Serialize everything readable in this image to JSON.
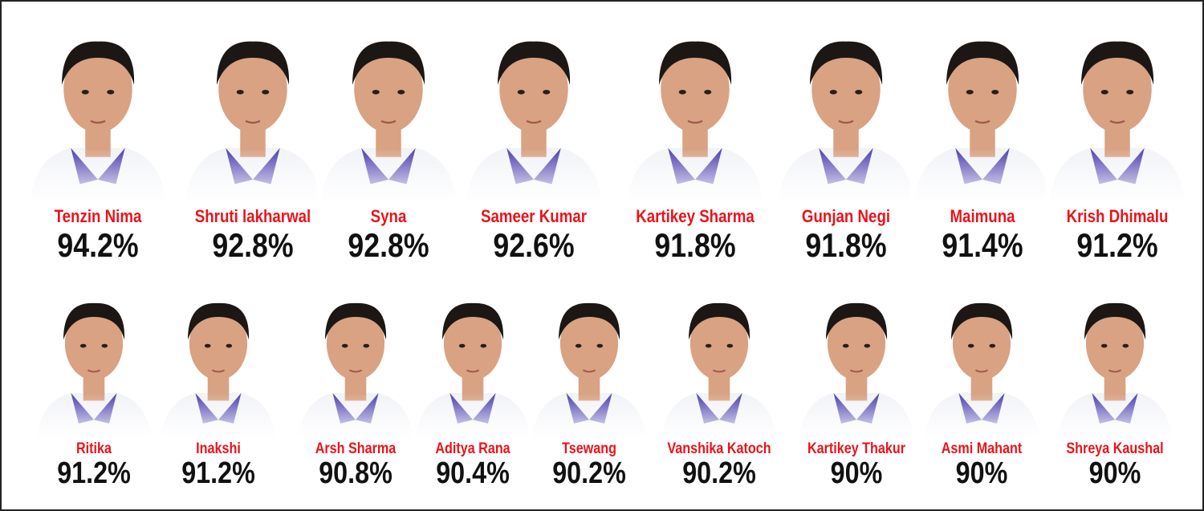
{
  "colors": {
    "name": "#e8141b",
    "score": "#111111",
    "collar": "#4b3fb0",
    "shirt": "#f2f3f7",
    "hair": "#1c1714",
    "skin": "#d8a283"
  },
  "row1": [
    {
      "name": "Tenzin Nima",
      "score": "94.2%"
    },
    {
      "name": "Shruti lakharwal",
      "score": "92.8%"
    },
    {
      "name": "Syna",
      "score": "92.8%"
    },
    {
      "name": "Sameer Kumar",
      "score": "92.6%"
    },
    {
      "name": "Kartikey Sharma",
      "score": "91.8%"
    },
    {
      "name": "Gunjan Negi",
      "score": "91.8%"
    },
    {
      "name": "Maimuna",
      "score": "91.4%"
    },
    {
      "name": "Krish Dhimalu",
      "score": "91.2%"
    }
  ],
  "row2": [
    {
      "name": "Ritika",
      "score": "91.2%"
    },
    {
      "name": "Inakshi",
      "score": "91.2%"
    },
    {
      "name": "Arsh Sharma",
      "score": "90.8%"
    },
    {
      "name": "Aditya Rana",
      "score": "90.4%"
    },
    {
      "name": "Tsewang",
      "score": "90.2%"
    },
    {
      "name": "Vanshika Katoch",
      "score": "90.2%"
    },
    {
      "name": "Kartikey Thakur",
      "score": "90%"
    },
    {
      "name": "Asmi Mahant",
      "score": "90%"
    },
    {
      "name": "Shreya Kaushal",
      "score": "90%"
    }
  ]
}
